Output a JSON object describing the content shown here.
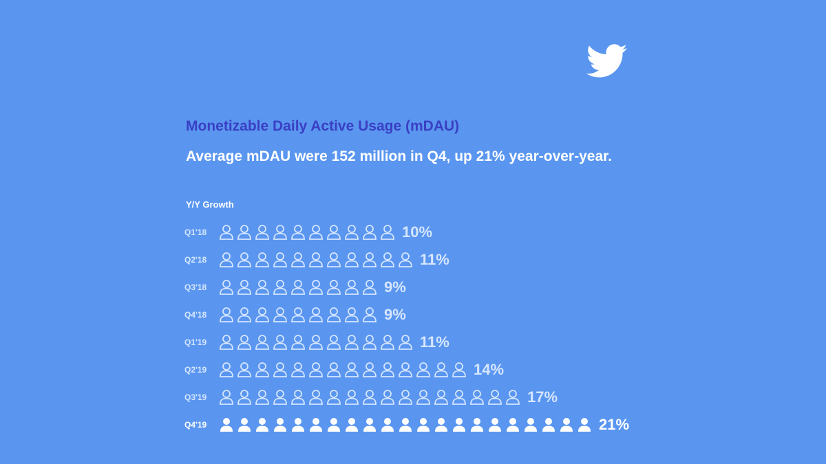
{
  "header": {
    "logo_icon": "twitter-bird-icon",
    "title": "Monetizable Daily Active Usage (mDAU)",
    "subtitle": "Average mDAU were 152 million in Q4, up 21% year-over-year."
  },
  "chart_data": {
    "type": "bar",
    "ylabel": "Y/Y Growth",
    "categories": [
      "Q1'18",
      "Q2'18",
      "Q3'18",
      "Q4'18",
      "Q1'19",
      "Q2'19",
      "Q3'19",
      "Q4'19"
    ],
    "values": [
      10,
      11,
      9,
      9,
      11,
      14,
      17,
      21
    ],
    "value_labels": [
      "10%",
      "11%",
      "9%",
      "9%",
      "11%",
      "14%",
      "17%",
      "21%"
    ],
    "unit_icon": "person-icon",
    "highlight_category": "Q4'19",
    "colors": {
      "background": "#5a96f0",
      "title": "#3a3fc4",
      "outline_icon": "#d6e6ff",
      "highlight": "#ffffff"
    }
  }
}
